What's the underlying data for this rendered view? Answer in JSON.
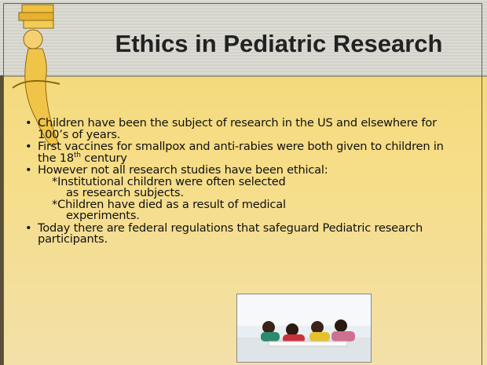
{
  "title": "Ethics in Pediatric Research",
  "bullets": [
    {
      "text": "Children have been the subject of research in the US and elsewhere for 100’s of years."
    },
    {
      "text": "First vaccines for smallpox and anti-rabies were both given to children in the 18",
      "sup": "th",
      "rest": "century"
    },
    {
      "text": "However not all research studies have been ethical:",
      "subitems": [
        [
          "*Institutional children were often selected",
          "as research subjects."
        ],
        [
          "*Children have died as a result of medical",
          "experiments."
        ]
      ]
    },
    {
      "text": "Today there are federal regulations that safeguard Pediatric research participants."
    }
  ]
}
